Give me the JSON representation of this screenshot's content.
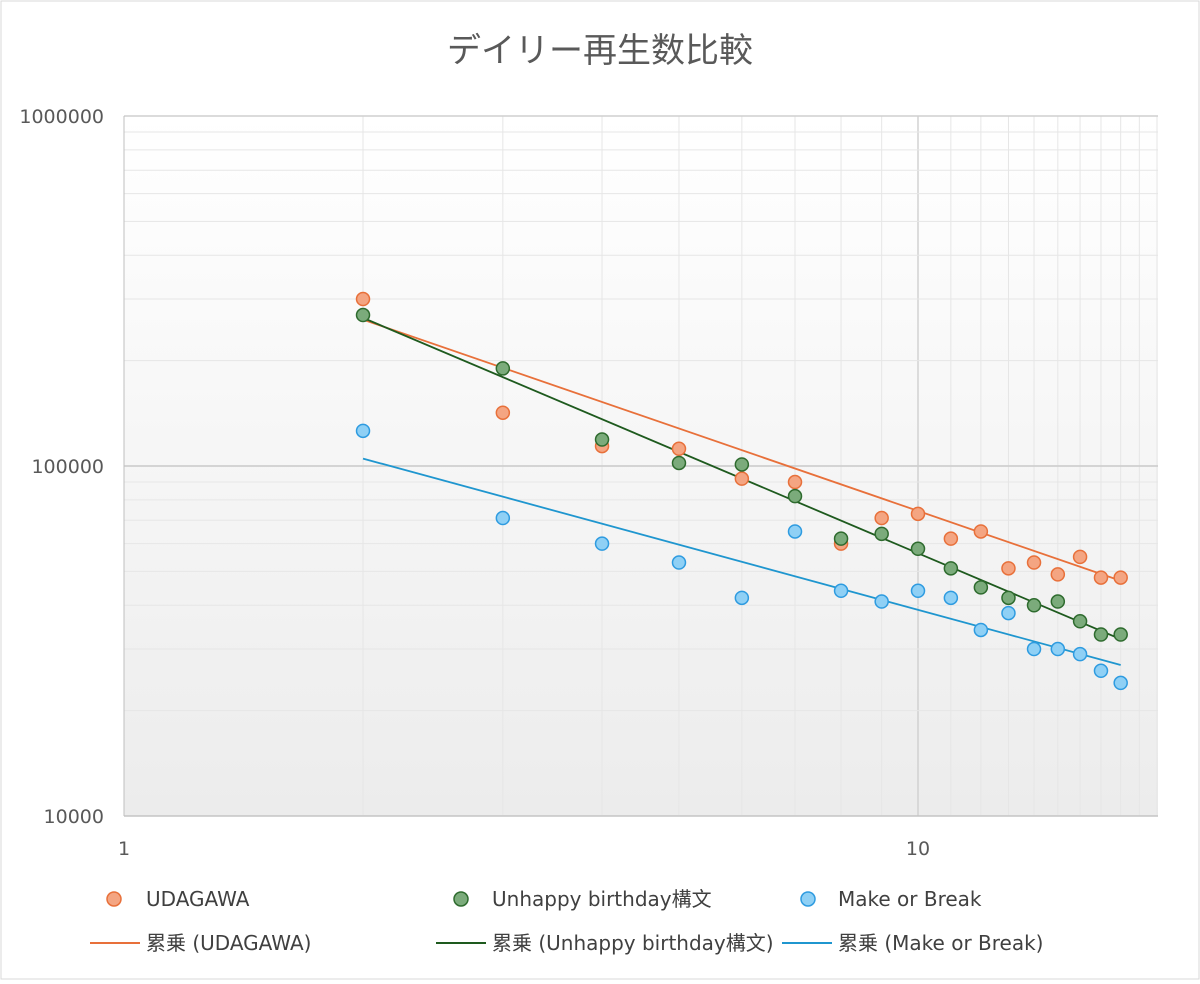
{
  "chart_data": {
    "type": "scatter",
    "title": "デイリー再生数比較",
    "xlabel": "",
    "ylabel": "",
    "x_scale": "log",
    "y_scale": "log",
    "xlim": [
      1,
      18
    ],
    "ylim": [
      10000,
      1000000
    ],
    "x_tick_labels": [
      "1",
      "10"
    ],
    "y_tick_labels": [
      "10000",
      "100000",
      "1000000"
    ],
    "grid": true,
    "legend_position": "bottom",
    "series": [
      {
        "name": "UDAGAWA",
        "color": "#f4a582",
        "edge_color": "#e8703a",
        "x": [
          2,
          3,
          4,
          5,
          6,
          7,
          8,
          9,
          10,
          11,
          12,
          13,
          14,
          15,
          16,
          17,
          18
        ],
        "values": [
          300000,
          142000,
          114000,
          112000,
          92000,
          90000,
          60000,
          71000,
          73000,
          62000,
          65000,
          51000,
          53000,
          49000,
          55000,
          48000,
          48000
        ]
      },
      {
        "name": "Unhappy birthday構文",
        "color": "#7bab7b",
        "edge_color": "#2e6b2e",
        "x": [
          2,
          3,
          4,
          5,
          6,
          7,
          8,
          9,
          10,
          11,
          12,
          13,
          14,
          15,
          16,
          17,
          18
        ],
        "values": [
          270000,
          190000,
          119000,
          102000,
          101000,
          82000,
          62000,
          64000,
          58000,
          51000,
          45000,
          42000,
          40000,
          41000,
          36000,
          33000,
          33000
        ]
      },
      {
        "name": "Make or Break",
        "color": "#8fd0f5",
        "edge_color": "#2e9be0",
        "x": [
          2,
          3,
          4,
          5,
          6,
          7,
          8,
          9,
          10,
          11,
          12,
          13,
          14,
          15,
          16,
          17,
          18
        ],
        "values": [
          126000,
          71000,
          60000,
          53000,
          42000,
          65000,
          44000,
          41000,
          44000,
          42000,
          34000,
          38000,
          30000,
          30000,
          29000,
          26000,
          24000
        ]
      }
    ],
    "trendlines": [
      {
        "name": "累乗 (UDAGAWA)",
        "type": "power",
        "color": "#e8703a",
        "x_range": [
          2,
          18
        ],
        "y_range": [
          262000,
          47000
        ]
      },
      {
        "name": "累乗 (Unhappy birthday構文)",
        "type": "power",
        "color": "#1e5a1e",
        "x_range": [
          2,
          18
        ],
        "y_range": [
          265000,
          32000
        ]
      },
      {
        "name": "累乗 (Make or Break)",
        "type": "power",
        "color": "#1f96cf",
        "x_range": [
          2,
          18
        ],
        "y_range": [
          105000,
          27000
        ]
      }
    ]
  }
}
